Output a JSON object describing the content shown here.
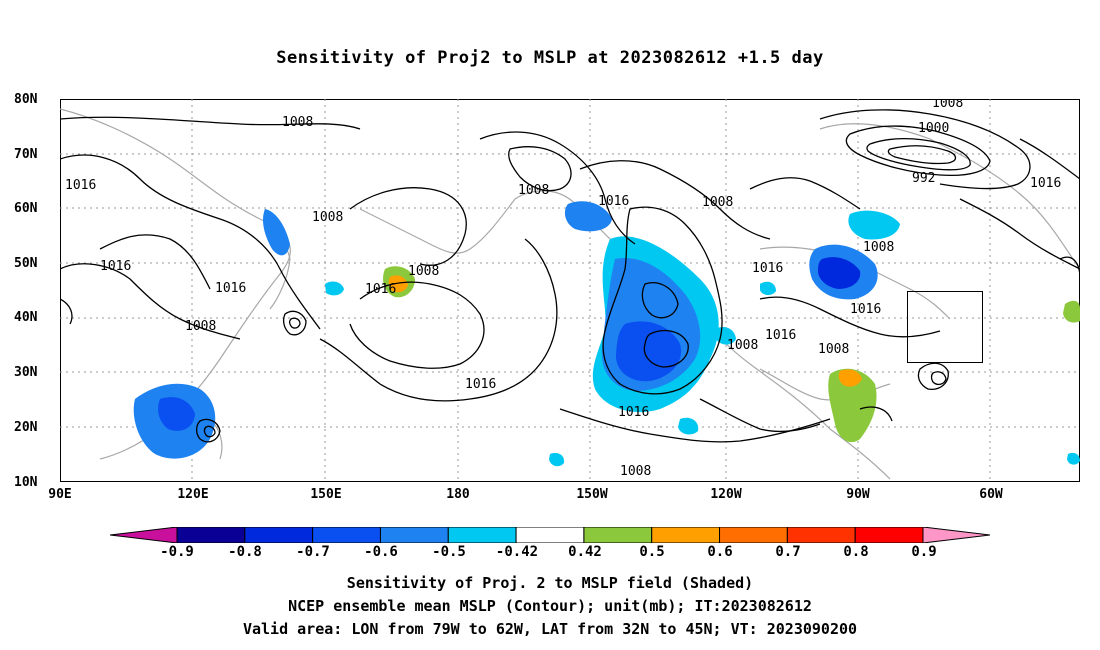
{
  "title": "Sensitivity of Proj2 to MSLP at 2023082612 +1.5 day",
  "lat_ticks": [
    "80N",
    "70N",
    "60N",
    "50N",
    "40N",
    "30N",
    "20N",
    "10N"
  ],
  "lon_ticks": [
    "90E",
    "120E",
    "150E",
    "180",
    "150W",
    "120W",
    "90W",
    "60W"
  ],
  "contour_labels": [
    "1008",
    "1016",
    "1008",
    "1016",
    "1008",
    "1016",
    "1008",
    "1008",
    "1016",
    "1008",
    "1016",
    "1016",
    "1016",
    "1008",
    "1016",
    "1008",
    "1016",
    "1016",
    "1008",
    "1008",
    "1000",
    "992",
    "1016",
    "1008"
  ],
  "colorbar": {
    "labels": [
      "-0.9",
      "-0.8",
      "-0.7",
      "-0.6",
      "-0.5",
      "-0.42",
      "0.42",
      "0.5",
      "0.6",
      "0.7",
      "0.8",
      "0.9"
    ],
    "colors": [
      "#c8109c",
      "#0a0096",
      "#0028dc",
      "#0a50f0",
      "#1e82f0",
      "#00c8f0",
      "#ffffff",
      "#8cc83c",
      "#ffa000",
      "#ff6e00",
      "#ff3200",
      "#ff0000",
      "#ff96c8"
    ]
  },
  "captions": [
    "Sensitivity of Proj. 2 to MSLP field (Shaded)",
    "NCEP ensemble mean MSLP (Contour); unit(mb); IT:2023082612",
    "Valid area: LON from 79W to 62W, LAT from 32N to 45N; VT: 2023090200"
  ]
}
